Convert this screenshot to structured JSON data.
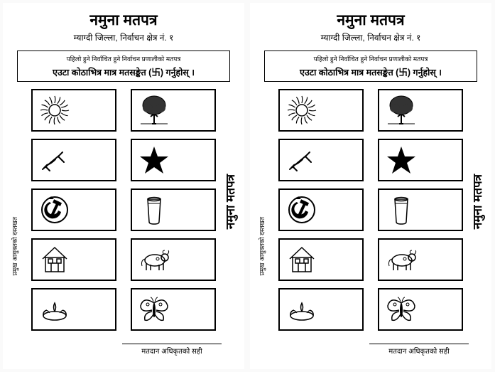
{
  "ballot": {
    "title": "नमुना मतपत्र",
    "subtitle": "म्याग्दी जिल्ला, निर्वाचन क्षेत्र नं. १",
    "instruction_small": "पहिलो हुने निर्वाचित हुने निर्वाचन प्रणालीको मतपत्र",
    "instruction_main": "एउटा कोठाभित्र मात्र मतसङ्केत (卐) गर्नुहोस् ।",
    "vertical_label_right": "नमुना मतपत्र",
    "vertical_label_left": "प्रमुख आयुक्तको दस्तखत",
    "signature_label": "मतदान अधिकृतको सही",
    "symbols": {
      "left": [
        "sun",
        "plough",
        "hammer-sickle",
        "house",
        "lamp"
      ],
      "right": [
        "tree",
        "star",
        "glass",
        "cow",
        "butterfly"
      ]
    },
    "colors": {
      "stroke": "#000000",
      "bg": "#ffffff"
    }
  }
}
